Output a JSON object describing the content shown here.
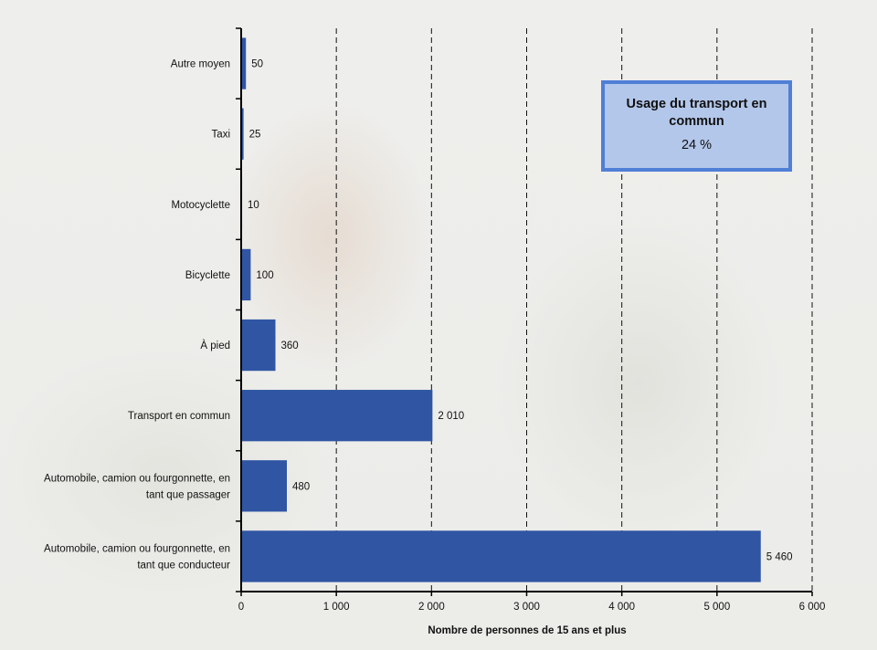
{
  "chart_data": {
    "type": "bar",
    "orientation": "horizontal",
    "categories": [
      "Autre moyen",
      "Taxi",
      "Motocyclette",
      "Bicyclette",
      "À pied",
      "Transport en commun",
      "Automobile, camion ou fourgonnette, en tant que passager",
      "Automobile, camion ou fourgonnette, en tant que conducteur"
    ],
    "category_label_lines": [
      [
        "Autre moyen"
      ],
      [
        "Taxi"
      ],
      [
        "Motocyclette"
      ],
      [
        "Bicyclette"
      ],
      [
        "À pied"
      ],
      [
        "Transport en commun"
      ],
      [
        "Automobile, camion ou fourgonnette, en",
        "tant que passager"
      ],
      [
        "Automobile, camion ou fourgonnette, en",
        "tant que conducteur"
      ]
    ],
    "values": [
      50,
      25,
      10,
      100,
      360,
      2010,
      480,
      5460
    ],
    "value_labels": [
      "50",
      "25",
      "10",
      "100",
      "360",
      "2 010",
      "480",
      "5 460"
    ],
    "xlim": [
      0,
      6000
    ],
    "xticks": [
      0,
      1000,
      2000,
      3000,
      4000,
      5000,
      6000
    ],
    "xtick_labels": [
      "0",
      "1 000",
      "2 000",
      "3 000",
      "4 000",
      "5 000",
      "6 000"
    ],
    "xlabel": "Nombre de personnes de 15 ans et plus",
    "grid": "vertical dashed",
    "bar_color": "#2f55a3"
  },
  "callout": {
    "title": "Usage du transport en commun",
    "value": "24 %",
    "fill_color": "#b3c7ea",
    "border_color": "#4f7fd6"
  }
}
